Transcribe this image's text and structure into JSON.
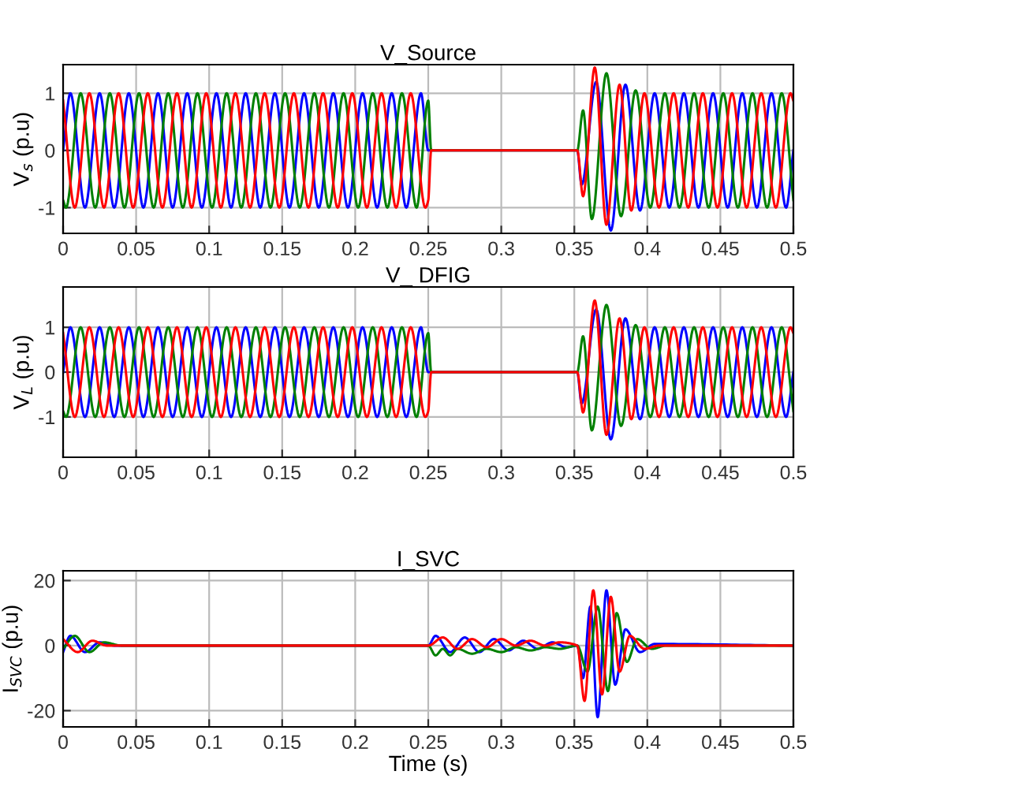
{
  "chart_data": [
    {
      "type": "line",
      "title": "V_Source",
      "ylabel": "V$_{s}$ (p.u)",
      "xlim": [
        0,
        0.5
      ],
      "xticks": [
        0,
        0.05,
        0.1,
        0.15,
        0.2,
        0.25,
        0.3,
        0.35,
        0.4,
        0.45,
        0.5
      ],
      "ylim": [
        -1.45,
        1.5
      ],
      "yticks": [
        -1,
        0,
        1
      ],
      "grid": true,
      "series": [
        {
          "color": "#0000ff",
          "x": [
            0,
            0.005,
            0.015,
            0.025,
            0.035,
            0.045,
            0.055,
            0.065,
            0.075,
            0.085,
            0.095,
            0.105,
            0.115,
            0.125,
            0.135,
            0.145,
            0.155,
            0.165,
            0.175,
            0.185,
            0.195,
            0.205,
            0.215,
            0.225,
            0.235,
            0.245,
            0.25,
            0.352,
            0.355,
            0.365,
            0.375,
            0.385,
            0.395,
            0.405,
            0.415,
            0.425,
            0.435,
            0.445,
            0.455,
            0.465,
            0.475,
            0.485,
            0.495,
            0.5
          ],
          "values": [
            0,
            1,
            -1,
            1,
            -1,
            1,
            -1,
            1,
            -1,
            1,
            -1,
            1,
            -1,
            1,
            -1,
            1,
            -1,
            1,
            -1,
            1,
            -1,
            1,
            -1,
            1,
            -1,
            1,
            0,
            0,
            -0.6,
            1.2,
            -1.4,
            1.15,
            -1.05,
            1,
            -1,
            1,
            -1,
            1,
            -1,
            1,
            -1,
            1,
            -1,
            0
          ]
        },
        {
          "color": "#008000",
          "x": [
            0,
            0.002,
            0.012,
            0.022,
            0.032,
            0.042,
            0.052,
            0.062,
            0.072,
            0.082,
            0.092,
            0.102,
            0.112,
            0.122,
            0.132,
            0.142,
            0.152,
            0.162,
            0.172,
            0.182,
            0.192,
            0.202,
            0.212,
            0.222,
            0.232,
            0.242,
            0.25,
            0.252,
            0.352,
            0.356,
            0.362,
            0.372,
            0.382,
            0.392,
            0.402,
            0.412,
            0.422,
            0.432,
            0.442,
            0.452,
            0.462,
            0.472,
            0.482,
            0.492,
            0.5
          ],
          "values": [
            -0.87,
            -1,
            1,
            -1,
            1,
            -1,
            1,
            -1,
            1,
            -1,
            1,
            -1,
            1,
            -1,
            1,
            -1,
            1,
            -1,
            1,
            -1,
            1,
            -1,
            1,
            -1,
            1,
            -1,
            0.87,
            0,
            0,
            0.7,
            -1.2,
            1.35,
            -1.15,
            1.05,
            -1,
            1,
            -1,
            1,
            -1,
            1,
            -1,
            1,
            -1,
            1,
            -0.87
          ]
        },
        {
          "color": "#ff0000",
          "x": [
            0,
            0.008,
            0.018,
            0.028,
            0.038,
            0.048,
            0.058,
            0.068,
            0.078,
            0.088,
            0.098,
            0.108,
            0.118,
            0.128,
            0.138,
            0.148,
            0.158,
            0.168,
            0.178,
            0.188,
            0.198,
            0.208,
            0.218,
            0.228,
            0.238,
            0.248,
            0.25,
            0.252,
            0.352,
            0.356,
            0.364,
            0.372,
            0.381,
            0.389,
            0.398,
            0.408,
            0.418,
            0.428,
            0.438,
            0.448,
            0.458,
            0.468,
            0.478,
            0.488,
            0.498,
            0.5
          ],
          "values": [
            0.87,
            -1,
            1,
            -1,
            1,
            -1,
            1,
            -1,
            1,
            -1,
            1,
            -1,
            1,
            -1,
            1,
            -1,
            1,
            -1,
            1,
            -1,
            1,
            -1,
            1,
            -1,
            1,
            -1,
            -0.87,
            0,
            0,
            -0.8,
            1.45,
            -1.3,
            1.15,
            -1.05,
            1,
            -1,
            1,
            -1,
            1,
            -1,
            1,
            -1,
            1,
            -1,
            1,
            0.87
          ]
        }
      ]
    },
    {
      "type": "line",
      "title": "V_ DFIG",
      "ylabel": "V$_{L}$ (p.u)",
      "xlim": [
        0,
        0.5
      ],
      "xticks": [
        0,
        0.05,
        0.1,
        0.15,
        0.2,
        0.25,
        0.3,
        0.35,
        0.4,
        0.45,
        0.5
      ],
      "ylim": [
        -1.9,
        1.9
      ],
      "yticks": [
        -1,
        0,
        1
      ],
      "grid": true,
      "series": [
        {
          "color": "#0000ff",
          "x": [
            0,
            0.005,
            0.015,
            0.025,
            0.035,
            0.045,
            0.055,
            0.065,
            0.075,
            0.085,
            0.095,
            0.105,
            0.115,
            0.125,
            0.135,
            0.145,
            0.155,
            0.165,
            0.175,
            0.185,
            0.195,
            0.205,
            0.215,
            0.225,
            0.235,
            0.245,
            0.25,
            0.352,
            0.355,
            0.365,
            0.375,
            0.385,
            0.395,
            0.405,
            0.415,
            0.425,
            0.435,
            0.445,
            0.455,
            0.465,
            0.475,
            0.485,
            0.495,
            0.5
          ],
          "values": [
            0,
            1,
            -1,
            1,
            -1,
            1,
            -1,
            1,
            -1,
            1,
            -1,
            1,
            -1,
            1,
            -1,
            1,
            -1,
            1,
            -1,
            1,
            -1,
            1,
            -1,
            1,
            -1,
            1,
            0,
            0,
            -0.7,
            1.4,
            -1.5,
            1.2,
            -1.05,
            1,
            -1,
            1,
            -1,
            1,
            -1,
            1,
            -1,
            1,
            -1,
            0
          ]
        },
        {
          "color": "#008000",
          "x": [
            0,
            0.002,
            0.012,
            0.022,
            0.032,
            0.042,
            0.052,
            0.062,
            0.072,
            0.082,
            0.092,
            0.102,
            0.112,
            0.122,
            0.132,
            0.142,
            0.152,
            0.162,
            0.172,
            0.182,
            0.192,
            0.202,
            0.212,
            0.222,
            0.232,
            0.242,
            0.25,
            0.252,
            0.352,
            0.356,
            0.362,
            0.372,
            0.382,
            0.392,
            0.402,
            0.412,
            0.422,
            0.432,
            0.442,
            0.452,
            0.462,
            0.472,
            0.482,
            0.492,
            0.5
          ],
          "values": [
            -0.87,
            -1,
            1,
            -1,
            1,
            -1,
            1,
            -1,
            1,
            -1,
            1,
            -1,
            1,
            -1,
            1,
            -1,
            1,
            -1,
            1,
            -1,
            1,
            -1,
            1,
            -1,
            1,
            -1,
            0.87,
            0,
            0,
            0.8,
            -1.3,
            1.5,
            -1.2,
            1.05,
            -1,
            1,
            -1,
            1,
            -1,
            1,
            -1,
            1,
            -1,
            1,
            -0.87
          ]
        },
        {
          "color": "#ff0000",
          "x": [
            0,
            0.008,
            0.018,
            0.028,
            0.038,
            0.048,
            0.058,
            0.068,
            0.078,
            0.088,
            0.098,
            0.108,
            0.118,
            0.128,
            0.138,
            0.148,
            0.158,
            0.168,
            0.178,
            0.188,
            0.198,
            0.208,
            0.218,
            0.228,
            0.238,
            0.248,
            0.25,
            0.252,
            0.352,
            0.356,
            0.364,
            0.372,
            0.381,
            0.389,
            0.398,
            0.408,
            0.418,
            0.428,
            0.438,
            0.448,
            0.458,
            0.468,
            0.478,
            0.488,
            0.498,
            0.5
          ],
          "values": [
            0.87,
            -1,
            1,
            -1,
            1,
            -1,
            1,
            -1,
            1,
            -1,
            1,
            -1,
            1,
            -1,
            1,
            -1,
            1,
            -1,
            1,
            -1,
            1,
            -1,
            1,
            -1,
            1,
            -1,
            -0.87,
            0,
            0,
            -0.9,
            1.6,
            -1.4,
            1.2,
            -1.05,
            1,
            -1,
            1,
            -1,
            1,
            -1,
            1,
            -1,
            1,
            -1,
            1,
            0.87
          ]
        }
      ]
    },
    {
      "type": "line",
      "title": "I_SVC",
      "ylabel": "I$_{SVC}$ (p.u)",
      "xlabel": "Time (s)",
      "xlim": [
        0,
        0.5
      ],
      "xticks": [
        0,
        0.05,
        0.1,
        0.15,
        0.2,
        0.25,
        0.3,
        0.35,
        0.4,
        0.45,
        0.5
      ],
      "ylim": [
        -25,
        23
      ],
      "yticks": [
        -20,
        0,
        20
      ],
      "grid": true,
      "series": [
        {
          "color": "#0000ff",
          "x": [
            0,
            0.005,
            0.015,
            0.025,
            0.035,
            0.25,
            0.255,
            0.265,
            0.275,
            0.285,
            0.295,
            0.305,
            0.315,
            0.325,
            0.335,
            0.345,
            0.352,
            0.356,
            0.361,
            0.366,
            0.372,
            0.378,
            0.385,
            0.395,
            0.405,
            0.5
          ],
          "values": [
            -2,
            3,
            -2,
            1,
            0,
            0,
            3,
            -2,
            2.5,
            -2,
            2,
            -1.5,
            1.5,
            -1,
            1,
            -0.5,
            0,
            -10,
            12,
            -22,
            17,
            -12,
            5,
            -2,
            0.5,
            0
          ]
        },
        {
          "color": "#008000",
          "x": [
            0,
            0.008,
            0.018,
            0.028,
            0.04,
            0.25,
            0.255,
            0.26,
            0.265,
            0.27,
            0.28,
            0.29,
            0.3,
            0.31,
            0.32,
            0.33,
            0.34,
            0.352,
            0.359,
            0.366,
            0.373,
            0.379,
            0.386,
            0.393,
            0.403,
            0.413,
            0.5
          ],
          "values": [
            -1,
            3,
            -2,
            1,
            0,
            0,
            -3,
            -1,
            -3,
            -1,
            -2.5,
            -1,
            -2,
            -0.5,
            -1.5,
            -0.5,
            -1,
            0,
            -8,
            12,
            -14,
            10,
            -5,
            2,
            -1,
            0,
            0
          ]
        },
        {
          "color": "#ff0000",
          "x": [
            0,
            0.01,
            0.02,
            0.03,
            0.25,
            0.26,
            0.27,
            0.28,
            0.29,
            0.3,
            0.31,
            0.32,
            0.33,
            0.34,
            0.352,
            0.357,
            0.363,
            0.369,
            0.375,
            0.381,
            0.388,
            0.398,
            0.408,
            0.5
          ],
          "values": [
            2,
            -2,
            1.5,
            0,
            0,
            2.5,
            -1,
            2,
            -0.5,
            2,
            0,
            1.5,
            0,
            1,
            0,
            -17,
            17,
            -15,
            15,
            -8,
            3,
            -1,
            0,
            0
          ]
        }
      ]
    }
  ]
}
